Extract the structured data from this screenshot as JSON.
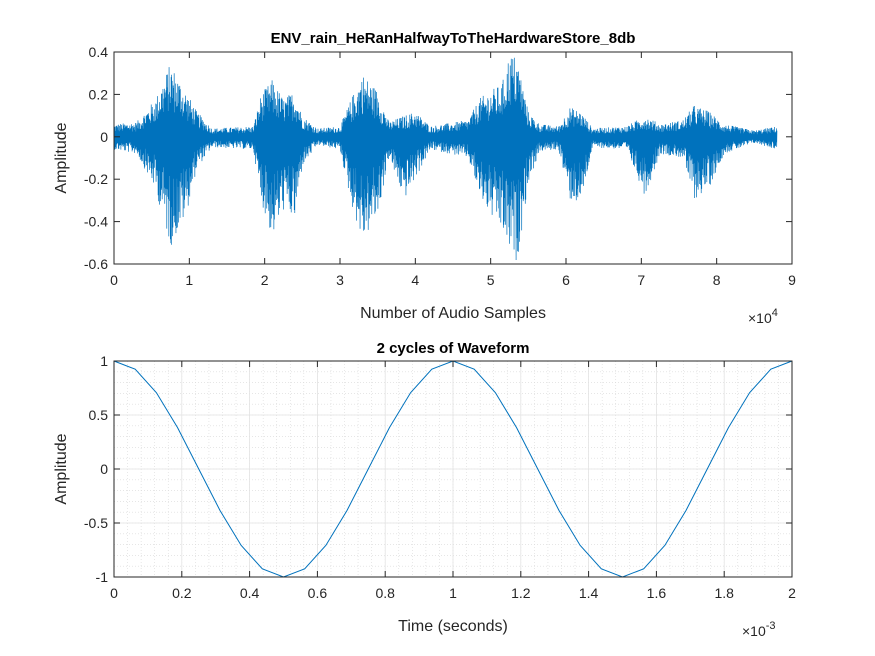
{
  "chart_data": [
    {
      "type": "line",
      "title": "ENV_rain_HeRanHalfwayToTheHardwareStore_8db",
      "xlabel": "Number of Audio Samples",
      "ylabel": "Amplitude",
      "xlim": [
        0,
        90000
      ],
      "ylim": [
        -0.6,
        0.4
      ],
      "xticks": [
        0,
        1,
        2,
        3,
        4,
        5,
        6,
        7,
        8,
        9
      ],
      "x_multiplier": {
        "base": "×10",
        "exponent": "4"
      },
      "yticks": [
        "-0.6",
        "-0.4",
        "-0.2",
        "0",
        "0.2",
        "0.4"
      ],
      "grid": false,
      "color": "#0072BD",
      "series": [
        {
          "sample_count": 88000,
          "envelope_upper": [
            [
              0,
              0.06
            ],
            [
              3000,
              0.07
            ],
            [
              5500,
              0.18
            ],
            [
              7500,
              0.35
            ],
            [
              9500,
              0.22
            ],
            [
              11000,
              0.12
            ],
            [
              13000,
              0.04
            ],
            [
              18500,
              0.05
            ],
            [
              19500,
              0.2
            ],
            [
              21000,
              0.27
            ],
            [
              22500,
              0.18
            ],
            [
              24000,
              0.22
            ],
            [
              25000,
              0.1
            ],
            [
              27000,
              0.04
            ],
            [
              30000,
              0.05
            ],
            [
              31500,
              0.18
            ],
            [
              33000,
              0.3
            ],
            [
              35000,
              0.22
            ],
            [
              36500,
              0.07
            ],
            [
              38500,
              0.1
            ],
            [
              40000,
              0.12
            ],
            [
              42000,
              0.05
            ],
            [
              47000,
              0.08
            ],
            [
              48500,
              0.18
            ],
            [
              50000,
              0.22
            ],
            [
              51500,
              0.25
            ],
            [
              52500,
              0.4
            ],
            [
              53500,
              0.38
            ],
            [
              55000,
              0.12
            ],
            [
              56500,
              0.06
            ],
            [
              59000,
              0.05
            ],
            [
              60500,
              0.14
            ],
            [
              62000,
              0.12
            ],
            [
              63500,
              0.04
            ],
            [
              68000,
              0.05
            ],
            [
              70500,
              0.1
            ],
            [
              72500,
              0.06
            ],
            [
              75500,
              0.08
            ],
            [
              77000,
              0.15
            ],
            [
              79000,
              0.12
            ],
            [
              81000,
              0.06
            ],
            [
              85000,
              0.03
            ],
            [
              88000,
              0.05
            ]
          ],
          "envelope_lower": [
            [
              0,
              -0.06
            ],
            [
              3000,
              -0.08
            ],
            [
              5500,
              -0.25
            ],
            [
              7500,
              -0.52
            ],
            [
              9500,
              -0.38
            ],
            [
              11000,
              -0.15
            ],
            [
              13000,
              -0.05
            ],
            [
              18500,
              -0.06
            ],
            [
              19500,
              -0.3
            ],
            [
              21000,
              -0.48
            ],
            [
              22500,
              -0.35
            ],
            [
              24000,
              -0.4
            ],
            [
              25000,
              -0.14
            ],
            [
              27000,
              -0.04
            ],
            [
              30000,
              -0.06
            ],
            [
              31500,
              -0.32
            ],
            [
              33000,
              -0.5
            ],
            [
              35000,
              -0.38
            ],
            [
              36500,
              -0.1
            ],
            [
              38500,
              -0.3
            ],
            [
              40000,
              -0.2
            ],
            [
              42000,
              -0.06
            ],
            [
              47000,
              -0.1
            ],
            [
              48500,
              -0.28
            ],
            [
              50000,
              -0.38
            ],
            [
              51500,
              -0.45
            ],
            [
              52500,
              -0.55
            ],
            [
              53500,
              -0.6
            ],
            [
              55000,
              -0.22
            ],
            [
              56500,
              -0.07
            ],
            [
              59000,
              -0.06
            ],
            [
              60500,
              -0.3
            ],
            [
              62000,
              -0.32
            ],
            [
              63500,
              -0.05
            ],
            [
              68000,
              -0.06
            ],
            [
              70500,
              -0.28
            ],
            [
              72500,
              -0.08
            ],
            [
              75500,
              -0.1
            ],
            [
              77000,
              -0.3
            ],
            [
              79000,
              -0.24
            ],
            [
              81000,
              -0.08
            ],
            [
              85000,
              -0.03
            ],
            [
              88000,
              -0.06
            ]
          ]
        }
      ]
    },
    {
      "type": "line",
      "title": "2 cycles of Waveform",
      "xlabel": "Time (seconds)",
      "ylabel": "Amplitude",
      "xlim": [
        0,
        0.002
      ],
      "ylim": [
        -1,
        1
      ],
      "xticks": [
        "0",
        "0.2",
        "0.4",
        "0.6",
        "0.8",
        "1",
        "1.2",
        "1.4",
        "1.6",
        "1.8",
        "2"
      ],
      "x_multiplier": {
        "base": "×10",
        "exponent": "-3"
      },
      "yticks": [
        "-1",
        "-0.5",
        "0",
        "0.5",
        "1"
      ],
      "grid": true,
      "minor_grid": true,
      "color": "#0072BD",
      "series": [
        {
          "x": [
            0,
            6.25e-05,
            0.000125,
            0.0001875,
            0.00025,
            0.0003125,
            0.000375,
            0.0004375,
            0.0005,
            0.0005625,
            0.000625,
            0.0006875,
            0.00075,
            0.0008125,
            0.000875,
            0.0009375,
            0.001,
            0.0010625,
            0.001125,
            0.0011875,
            0.00125,
            0.0013125,
            0.001375,
            0.0014375,
            0.0015,
            0.0015625,
            0.001625,
            0.0016875,
            0.00175,
            0.0018125,
            0.001875,
            0.0019375,
            0.002
          ],
          "y": [
            1,
            0.924,
            0.707,
            0.383,
            0,
            -0.383,
            -0.707,
            -0.924,
            -1,
            -0.924,
            -0.707,
            -0.383,
            0,
            0.383,
            0.707,
            0.924,
            1,
            0.924,
            0.707,
            0.383,
            0,
            -0.383,
            -0.707,
            -0.924,
            -1,
            -0.924,
            -0.707,
            -0.383,
            0,
            0.383,
            0.707,
            0.924,
            1
          ]
        }
      ]
    }
  ]
}
